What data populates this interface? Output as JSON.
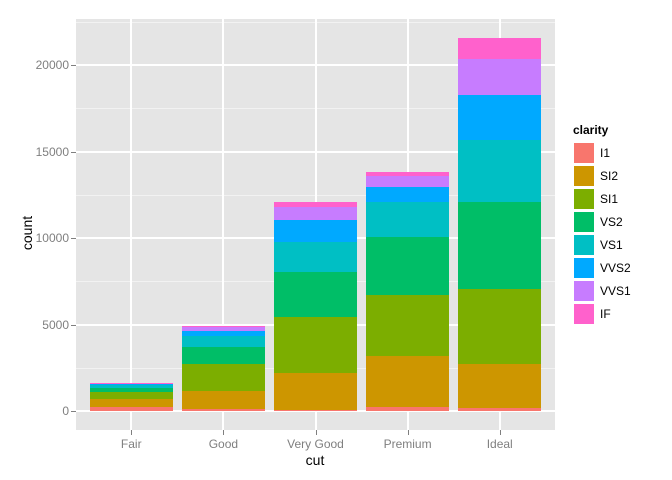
{
  "chart_data": {
    "type": "bar",
    "stacked": true,
    "title": "",
    "xlabel": "cut",
    "ylabel": "count",
    "ylim": [
      0,
      22500
    ],
    "yticks": [
      0,
      5000,
      10000,
      15000,
      20000
    ],
    "ytick_labels": [
      "0",
      "5000",
      "10000",
      "15000",
      "20000"
    ],
    "categories": [
      "Fair",
      "Good",
      "Very Good",
      "Premium",
      "Ideal"
    ],
    "legend_title": "clarity",
    "legend_position": "right",
    "grid": true,
    "series": [
      {
        "name": "I1",
        "color": "#F8766D",
        "values": [
          210,
          96,
          84,
          205,
          146
        ]
      },
      {
        "name": "SI2",
        "color": "#CD9600",
        "values": [
          466,
          1081,
          2100,
          2949,
          2598
        ]
      },
      {
        "name": "SI1",
        "color": "#7CAE00",
        "values": [
          408,
          1560,
          3240,
          3575,
          4282
        ]
      },
      {
        "name": "VS2",
        "color": "#00BE67",
        "values": [
          261,
          978,
          2591,
          3357,
          5071
        ]
      },
      {
        "name": "VS1",
        "color": "#00BFC4",
        "values": [
          170,
          648,
          1775,
          1989,
          3589
        ]
      },
      {
        "name": "VVS2",
        "color": "#00A9FF",
        "values": [
          69,
          286,
          1235,
          870,
          2606
        ]
      },
      {
        "name": "VVS1",
        "color": "#C77CFF",
        "values": [
          17,
          186,
          789,
          616,
          2047
        ]
      },
      {
        "name": "IF",
        "color": "#FF61CC",
        "values": [
          9,
          71,
          268,
          230,
          1212
        ]
      }
    ]
  }
}
